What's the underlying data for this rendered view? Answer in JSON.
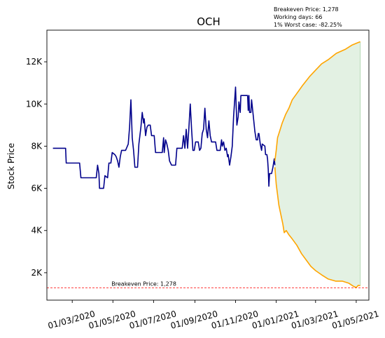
{
  "chart_data": {
    "type": "line",
    "title": "OCH",
    "xlabel": "",
    "ylabel": "Stock Price",
    "grid": false,
    "x_axis": {
      "ticks": [
        "01/03/2020",
        "01/05/2020",
        "01/07/2020",
        "01/09/2020",
        "01/11/2020",
        "01/01/2021",
        "01/03/2021",
        "01/05/2021"
      ],
      "tick_dates": [
        "2020-03-01",
        "2020-05-01",
        "2020-07-01",
        "2020-09-01",
        "2020-11-01",
        "2021-01-01",
        "2021-03-01",
        "2021-05-01"
      ],
      "range": [
        "2020-01-23",
        "2021-05-20"
      ]
    },
    "y_axis": {
      "ticks": [
        2000,
        4000,
        6000,
        8000,
        10000,
        12000
      ],
      "tick_labels": [
        "2K",
        "4K",
        "6K",
        "8K",
        "10K",
        "12K"
      ],
      "range": [
        700,
        13500
      ]
    },
    "info_lines": [
      "Breakeven Price: 1,278",
      "Working days: 66",
      "1% Worst case: -82.25%"
    ],
    "breakeven": {
      "value": 1278,
      "label": "Breakeven Price: 1,278",
      "color": "#ff0000",
      "label_x": "2020-05-01"
    },
    "series": [
      {
        "color": "#00008b",
        "points": [
          [
            "2020-02-01",
            7900
          ],
          [
            "2020-02-20",
            7900
          ],
          [
            "2020-02-21",
            7200
          ],
          [
            "2020-03-12",
            7200
          ],
          [
            "2020-03-14",
            6500
          ],
          [
            "2020-04-06",
            6500
          ],
          [
            "2020-04-08",
            7100
          ],
          [
            "2020-04-10",
            6700
          ],
          [
            "2020-04-11",
            6000
          ],
          [
            "2020-04-17",
            6000
          ],
          [
            "2020-04-19",
            6600
          ],
          [
            "2020-04-23",
            6500
          ],
          [
            "2020-04-25",
            7200
          ],
          [
            "2020-04-28",
            7200
          ],
          [
            "2020-04-30",
            7700
          ],
          [
            "2020-05-04",
            7600
          ],
          [
            "2020-05-06",
            7500
          ],
          [
            "2020-05-08",
            7300
          ],
          [
            "2020-05-10",
            7000
          ],
          [
            "2020-05-12",
            7500
          ],
          [
            "2020-05-14",
            7800
          ],
          [
            "2020-05-20",
            7800
          ],
          [
            "2020-05-24",
            8100
          ],
          [
            "2020-05-26",
            8900
          ],
          [
            "2020-05-28",
            10200
          ],
          [
            "2020-05-30",
            8400
          ],
          [
            "2020-06-01",
            7800
          ],
          [
            "2020-06-03",
            7000
          ],
          [
            "2020-06-07",
            7000
          ],
          [
            "2020-06-09",
            8100
          ],
          [
            "2020-06-12",
            8900
          ],
          [
            "2020-06-14",
            9600
          ],
          [
            "2020-06-16",
            9100
          ],
          [
            "2020-06-17",
            9300
          ],
          [
            "2020-06-19",
            8500
          ],
          [
            "2020-06-21",
            8900
          ],
          [
            "2020-06-23",
            9000
          ],
          [
            "2020-06-26",
            9000
          ],
          [
            "2020-06-28",
            8500
          ],
          [
            "2020-07-02",
            8500
          ],
          [
            "2020-07-04",
            7700
          ],
          [
            "2020-07-14",
            7700
          ],
          [
            "2020-07-16",
            8400
          ],
          [
            "2020-07-17",
            7700
          ],
          [
            "2020-07-19",
            8300
          ],
          [
            "2020-07-21",
            8100
          ],
          [
            "2020-07-23",
            7800
          ],
          [
            "2020-07-25",
            7300
          ],
          [
            "2020-07-28",
            7100
          ],
          [
            "2020-08-03",
            7100
          ],
          [
            "2020-08-05",
            7900
          ],
          [
            "2020-08-13",
            7900
          ],
          [
            "2020-08-15",
            8500
          ],
          [
            "2020-08-17",
            7900
          ],
          [
            "2020-08-19",
            8800
          ],
          [
            "2020-08-21",
            7900
          ],
          [
            "2020-08-23",
            8900
          ],
          [
            "2020-08-25",
            10000
          ],
          [
            "2020-08-27",
            8800
          ],
          [
            "2020-08-29",
            7800
          ],
          [
            "2020-08-31",
            7800
          ],
          [
            "2020-09-02",
            8200
          ],
          [
            "2020-09-06",
            8200
          ],
          [
            "2020-09-08",
            7800
          ],
          [
            "2020-09-10",
            7900
          ],
          [
            "2020-09-12",
            8600
          ],
          [
            "2020-09-14",
            8800
          ],
          [
            "2020-09-16",
            9800
          ],
          [
            "2020-09-18",
            8800
          ],
          [
            "2020-09-20",
            8400
          ],
          [
            "2020-09-22",
            9200
          ],
          [
            "2020-09-24",
            8500
          ],
          [
            "2020-09-26",
            8200
          ],
          [
            "2020-10-02",
            8200
          ],
          [
            "2020-10-04",
            7800
          ],
          [
            "2020-10-09",
            7800
          ],
          [
            "2020-10-11",
            8300
          ],
          [
            "2020-10-12",
            8000
          ],
          [
            "2020-10-14",
            8200
          ],
          [
            "2020-10-16",
            7800
          ],
          [
            "2020-10-18",
            7900
          ],
          [
            "2020-10-20",
            7500
          ],
          [
            "2020-10-21",
            7600
          ],
          [
            "2020-10-23",
            7100
          ],
          [
            "2020-10-25",
            7500
          ],
          [
            "2020-10-27",
            8000
          ],
          [
            "2020-10-29",
            9400
          ],
          [
            "2020-11-01",
            10800
          ],
          [
            "2020-11-02",
            9800
          ],
          [
            "2020-11-03",
            9000
          ],
          [
            "2020-11-05",
            9400
          ],
          [
            "2020-11-06",
            10100
          ],
          [
            "2020-11-08",
            9600
          ],
          [
            "2020-11-09",
            10400
          ],
          [
            "2020-11-19",
            10400
          ],
          [
            "2020-11-20",
            9700
          ],
          [
            "2020-11-21",
            10400
          ],
          [
            "2020-11-22",
            9600
          ],
          [
            "2020-11-24",
            9600
          ],
          [
            "2020-11-25",
            10200
          ],
          [
            "2020-11-27",
            9600
          ],
          [
            "2020-11-30",
            8700
          ],
          [
            "2020-12-02",
            8300
          ],
          [
            "2020-12-04",
            8300
          ],
          [
            "2020-12-05",
            8600
          ],
          [
            "2020-12-06",
            8600
          ],
          [
            "2020-12-08",
            8100
          ],
          [
            "2020-12-10",
            7800
          ],
          [
            "2020-12-11",
            8100
          ],
          [
            "2020-12-15",
            8000
          ],
          [
            "2020-12-16",
            7600
          ],
          [
            "2020-12-18",
            7600
          ],
          [
            "2020-12-19",
            7400
          ],
          [
            "2020-12-20",
            6900
          ],
          [
            "2020-12-21",
            6100
          ],
          [
            "2020-12-22",
            6700
          ],
          [
            "2020-12-25",
            6700
          ],
          [
            "2020-12-27",
            7000
          ],
          [
            "2020-12-29",
            7400
          ],
          [
            "2020-12-30",
            7100
          ]
        ]
      },
      {
        "color": "#ffa500",
        "points": [
          [
            "2020-12-30",
            7300
          ],
          [
            "2021-01-01",
            7800
          ],
          [
            "2021-01-03",
            8400
          ],
          [
            "2021-01-06",
            8700
          ],
          [
            "2021-01-10",
            9100
          ],
          [
            "2021-01-15",
            9500
          ],
          [
            "2021-01-20",
            9800
          ],
          [
            "2021-01-25",
            10200
          ],
          [
            "2021-02-01",
            10500
          ],
          [
            "2021-02-10",
            10900
          ],
          [
            "2021-02-20",
            11300
          ],
          [
            "2021-03-01",
            11600
          ],
          [
            "2021-03-10",
            11900
          ],
          [
            "2021-03-20",
            12100
          ],
          [
            "2021-04-01",
            12400
          ],
          [
            "2021-04-15",
            12600
          ],
          [
            "2021-04-25",
            12800
          ],
          [
            "2021-05-03",
            12900
          ],
          [
            "2021-05-07",
            12950
          ]
        ]
      },
      {
        "color": "#ffa500",
        "points": [
          [
            "2020-12-30",
            7000
          ],
          [
            "2021-01-01",
            6200
          ],
          [
            "2021-01-03",
            5700
          ],
          [
            "2021-01-05",
            5200
          ],
          [
            "2021-01-07",
            4900
          ],
          [
            "2021-01-09",
            4600
          ],
          [
            "2021-01-11",
            4300
          ],
          [
            "2021-01-13",
            3900
          ],
          [
            "2021-01-16",
            4000
          ],
          [
            "2021-01-20",
            3800
          ],
          [
            "2021-01-25",
            3600
          ],
          [
            "2021-02-01",
            3300
          ],
          [
            "2021-02-08",
            2900
          ],
          [
            "2021-02-15",
            2600
          ],
          [
            "2021-02-22",
            2300
          ],
          [
            "2021-03-01",
            2100
          ],
          [
            "2021-03-10",
            1900
          ],
          [
            "2021-03-20",
            1700
          ],
          [
            "2021-03-31",
            1600
          ],
          [
            "2021-04-10",
            1600
          ],
          [
            "2021-04-20",
            1500
          ],
          [
            "2021-04-27",
            1350
          ],
          [
            "2021-05-01",
            1300
          ],
          [
            "2021-05-04",
            1400
          ],
          [
            "2021-05-07",
            1380
          ]
        ]
      }
    ],
    "band": {
      "from": "2020-12-30",
      "to": "2021-05-07",
      "fill": "#e3f1e3",
      "between": "forecast envelope"
    }
  }
}
